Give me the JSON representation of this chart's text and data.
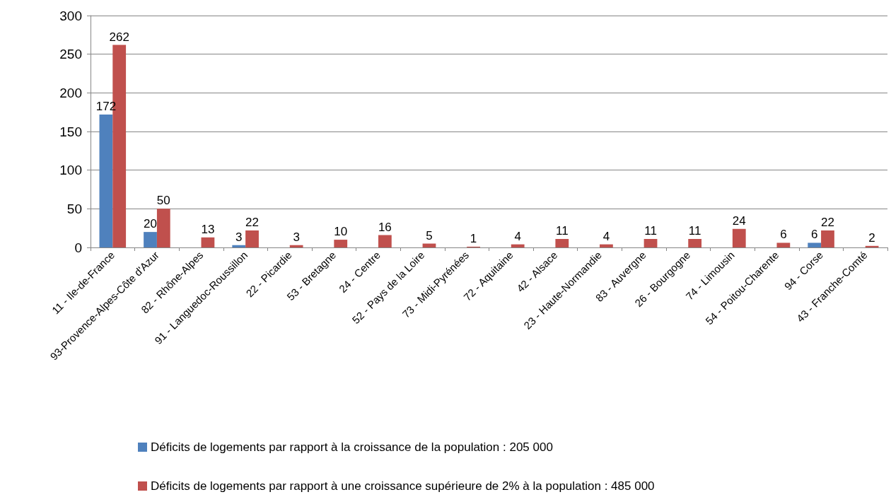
{
  "chart_data": {
    "type": "bar",
    "categories": [
      "11 - Ile-de-France",
      "93-Provence-Alpes-Côte d'Azur",
      "82 - Rhône-Alpes",
      "91 - Languedoc-Roussillon",
      "22 - Picardie",
      "53 - Bretagne",
      "24 - Centre",
      "52 - Pays de la Loire",
      "73 - Midi-Pyrénées",
      "72 - Aquitaine",
      "42 - Alsace",
      "23 - Haute-Normandie",
      "83 - Auvergne",
      "26 - Bourgogne",
      "74 - Limousin",
      "54 - Poitou-Charente",
      "94 - Corse",
      "43 - Franche-Comté"
    ],
    "series": [
      {
        "name": "Déficits de logements par rapport à la croissance de la population : 205 000",
        "color": "#4f81bd",
        "values": [
          172,
          20,
          null,
          3,
          null,
          null,
          null,
          null,
          null,
          null,
          null,
          null,
          null,
          null,
          null,
          null,
          6,
          null
        ]
      },
      {
        "name": "Déficits de logements par rapport à une croissance supérieure de 2% à la population : 485 000",
        "color": "#c0504d",
        "values": [
          262,
          50,
          13,
          22,
          3,
          10,
          16,
          5,
          1,
          4,
          11,
          4,
          11,
          11,
          24,
          6,
          22,
          2
        ]
      }
    ],
    "ylim": [
      0,
      300
    ],
    "yticks": [
      0,
      50,
      100,
      150,
      200,
      250,
      300
    ],
    "grid": "y",
    "legend": "bottom",
    "data_labels": true
  }
}
